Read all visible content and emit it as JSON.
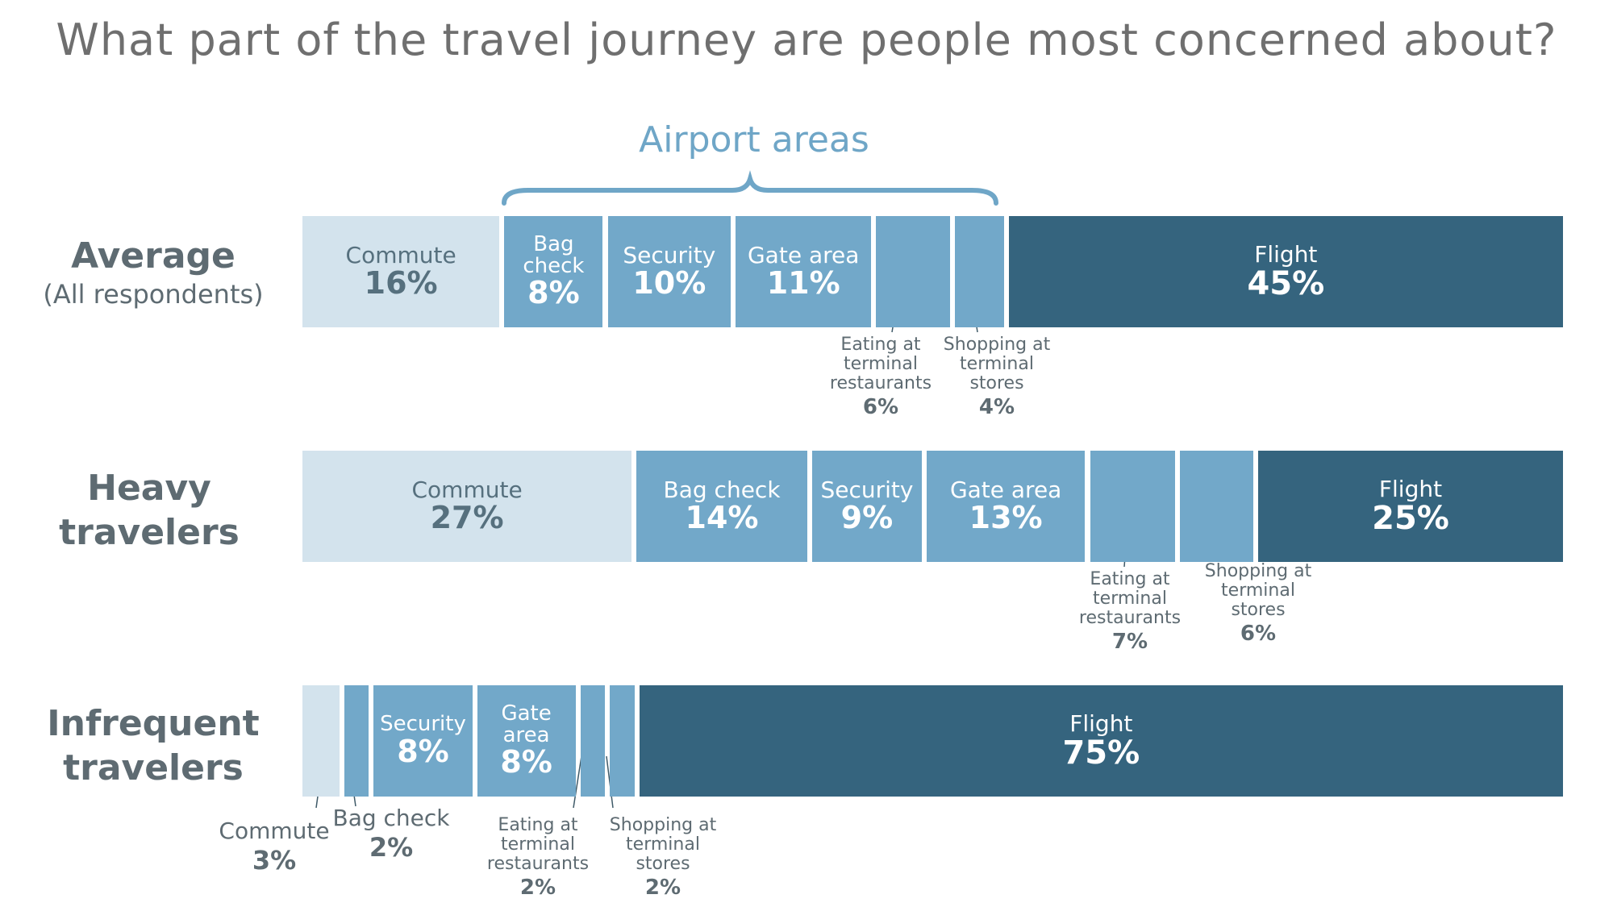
{
  "chart_data": {
    "type": "bar",
    "orientation": "horizontal",
    "stacked": true,
    "title": "What part of the travel journey are people most concerned about?",
    "group_label": "Airport areas",
    "rows": [
      {
        "label": "Average",
        "sublabel": "(All respondents)",
        "segments": [
          {
            "name": "Commute",
            "value": 16,
            "value_label": "16%",
            "kind": "commute"
          },
          {
            "name": "Bag check",
            "value": 8,
            "value_label": "8%",
            "kind": "airport"
          },
          {
            "name": "Security",
            "value": 10,
            "value_label": "10%",
            "kind": "airport"
          },
          {
            "name": "Gate area",
            "value": 11,
            "value_label": "11%",
            "kind": "airport"
          },
          {
            "name": "Eating at terminal restaurants",
            "value": 6,
            "value_label": "6%",
            "kind": "airport",
            "callout": true
          },
          {
            "name": "Shopping at terminal stores",
            "value": 4,
            "value_label": "4%",
            "kind": "airport",
            "callout": true
          },
          {
            "name": "Flight",
            "value": 45,
            "value_label": "45%",
            "kind": "flight"
          }
        ]
      },
      {
        "label": "Heavy travelers",
        "sublabel": "",
        "segments": [
          {
            "name": "Commute",
            "value": 27,
            "value_label": "27%",
            "kind": "commute"
          },
          {
            "name": "Bag check",
            "value": 14,
            "value_label": "14%",
            "kind": "airport"
          },
          {
            "name": "Security",
            "value": 9,
            "value_label": "9%",
            "kind": "airport"
          },
          {
            "name": "Gate area",
            "value": 13,
            "value_label": "13%",
            "kind": "airport"
          },
          {
            "name": "Eating at terminal restaurants",
            "value": 7,
            "value_label": "7%",
            "kind": "airport",
            "callout": true
          },
          {
            "name": "Shopping at terminal stores",
            "value": 6,
            "value_label": "6%",
            "kind": "airport",
            "callout": true
          },
          {
            "name": "Flight",
            "value": 25,
            "value_label": "25%",
            "kind": "flight"
          }
        ]
      },
      {
        "label": "Infrequent travelers",
        "sublabel": "",
        "segments": [
          {
            "name": "Commute",
            "value": 3,
            "value_label": "3%",
            "kind": "commute",
            "callout": true
          },
          {
            "name": "Bag check",
            "value": 2,
            "value_label": "2%",
            "kind": "airport",
            "callout": true
          },
          {
            "name": "Security",
            "value": 8,
            "value_label": "8%",
            "kind": "airport"
          },
          {
            "name": "Gate area",
            "value": 8,
            "value_label": "8%",
            "kind": "airport"
          },
          {
            "name": "Eating at terminal restaurants",
            "value": 2,
            "value_label": "2%",
            "kind": "airport",
            "callout": true
          },
          {
            "name": "Shopping at terminal stores",
            "value": 2,
            "value_label": "2%",
            "kind": "airport",
            "callout": true
          },
          {
            "name": "Flight",
            "value": 75,
            "value_label": "75%",
            "kind": "flight"
          }
        ]
      }
    ],
    "colors": {
      "commute": "#d3e3ed",
      "airport": "#72a8c9",
      "flight": "#35647e",
      "label_text": "#5e6b72",
      "title_text": "#6f6f6f"
    },
    "legend": "none",
    "grid": false
  }
}
